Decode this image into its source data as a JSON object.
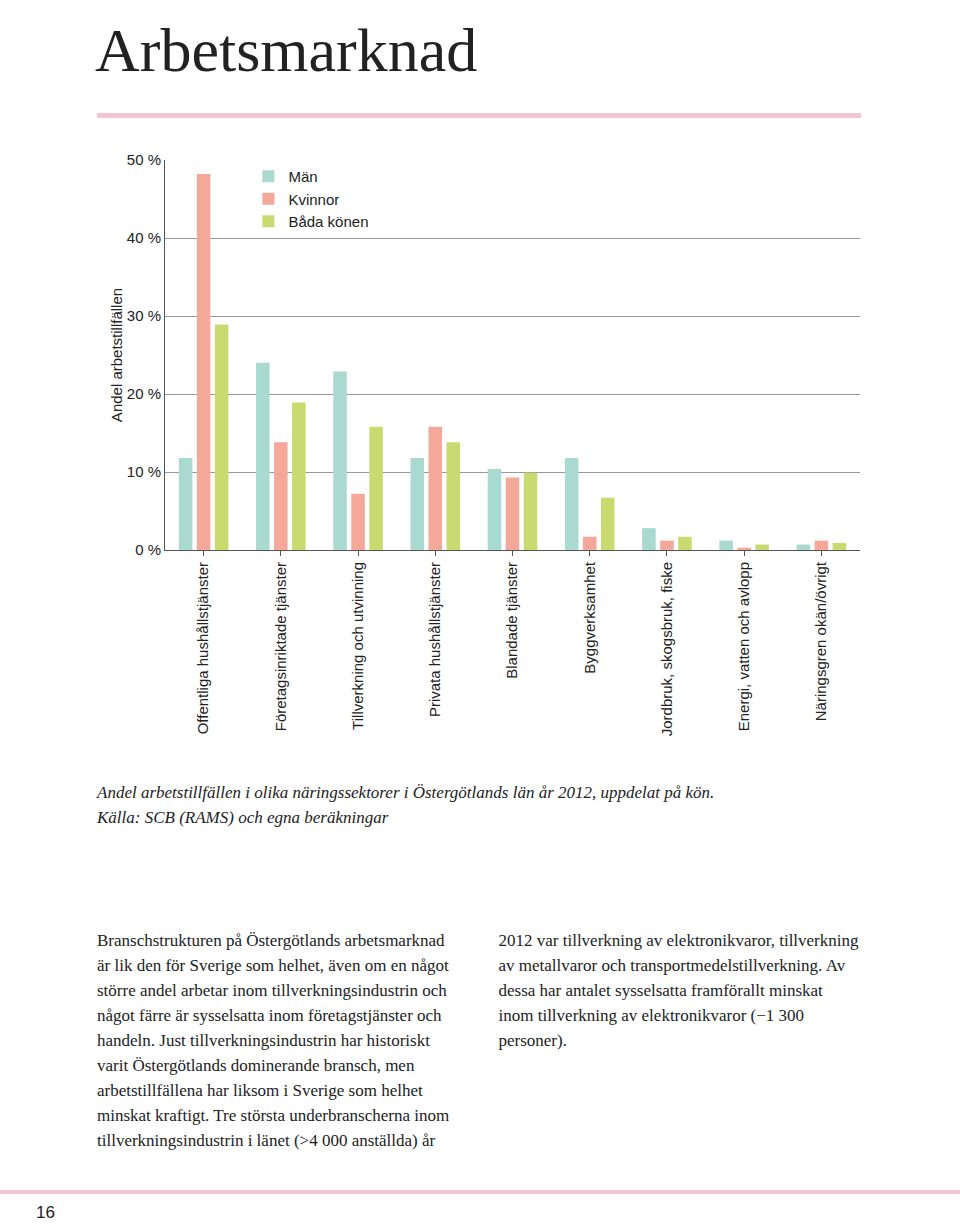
{
  "heading": "Arbetsmarknad",
  "chart_data": {
    "type": "bar",
    "y_label": "Andel arbetstillfällen",
    "categories": [
      "Offentliga hushållstjänster",
      "Företagsinriktade tjänster",
      "Tillverkning och utvinning",
      "Privata hushållstjänster",
      "Blandade tjänster",
      "Byggverksamhet",
      "Jordbruk, skogsbruk, fiske",
      "Energi, vatten och avlopp",
      "Näringsgren okän/övrigt"
    ],
    "series": [
      {
        "name": "Män",
        "color": "#a9d9cf",
        "values": [
          11.8,
          24.0,
          22.9,
          11.8,
          10.4,
          11.8,
          2.8,
          1.2,
          0.7
        ]
      },
      {
        "name": "Kvinnor",
        "color": "#f3a89a",
        "values": [
          48.2,
          13.8,
          7.2,
          15.8,
          9.3,
          1.7,
          1.2,
          0.3,
          1.2
        ]
      },
      {
        "name": "Båda könen",
        "color": "#c9db70",
        "values": [
          28.9,
          18.9,
          15.8,
          13.8,
          9.9,
          6.7,
          1.7,
          0.7,
          0.9
        ]
      }
    ],
    "ylim": [
      0,
      50
    ],
    "yticks": [
      {
        "value": 0,
        "label": "0 %"
      },
      {
        "value": 10,
        "label": "10 %"
      },
      {
        "value": 20,
        "label": "20 %"
      },
      {
        "value": 30,
        "label": "30 %"
      },
      {
        "value": 40,
        "label": "40 %"
      },
      {
        "value": 50,
        "label": "50 %"
      }
    ],
    "grid": true,
    "legend": "upper left"
  },
  "caption": [
    "Andel arbetstillfällen i olika näringssektorer i Östergötlands län år 2012, uppdelat på kön.",
    "Källa: SCB (RAMS) och egna beräkningar"
  ],
  "body": "Branschstrukturen på Östergötlands arbetsmarknad är lik den för Sverige som helhet, även om en något större andel arbetar inom tillverkningsindustrin och något färre är sysselsatta inom företagstjänster och handeln. Just tillverkningsindustrin har historiskt varit Östergötlands dominerande bransch, men arbetstillfällena har liksom i Sverige som helhet minskat kraftigt. Tre största underbranscherna inom tillverkningsindustrin i länet (>4 000 anställda) år 2012 var tillverkning av elektronikvaror, tillverkning av metallvaror och transportmedelstillverkning. Av dessa har antalet sysselsatta framförallt minskat inom tillverkning av elektronikvaror (−1 300 personer).",
  "page_number": "16"
}
